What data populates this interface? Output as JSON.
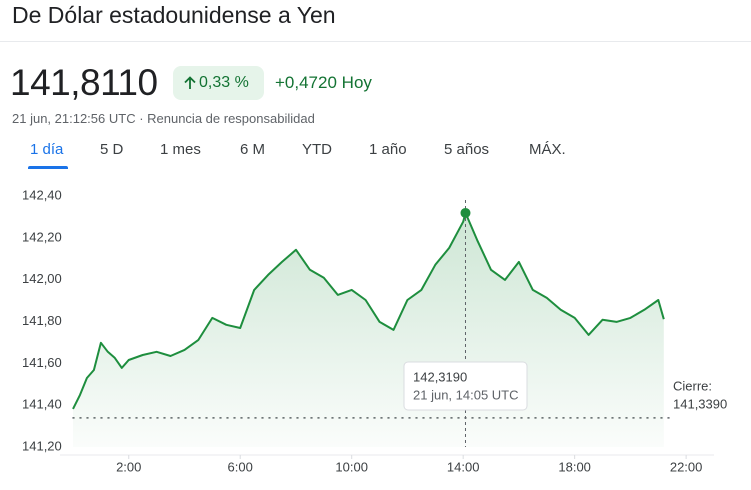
{
  "header": {
    "title": "De Dólar estadounidense a Yen",
    "price": "141,8110",
    "change_pct": "0,33 %",
    "change_abs": "+0,4720",
    "change_period": "Hoy",
    "meta": "21 jun, 21:12:56 UTC · Renuncia de responsabilidad"
  },
  "tabs": [
    "1 día",
    "5 D",
    "1 mes",
    "6 M",
    "YTD",
    "1 año",
    "5 años",
    "MÁX."
  ],
  "chart_data": {
    "type": "line",
    "color": "#1e8e3e",
    "x": [
      0,
      0.25,
      0.5,
      0.75,
      1,
      1.25,
      1.5,
      1.75,
      2,
      2.5,
      3,
      3.5,
      4,
      4.5,
      5,
      5.5,
      6,
      6.5,
      7,
      7.5,
      8,
      8.5,
      9,
      9.5,
      10,
      10.5,
      11,
      11.5,
      12,
      12.5,
      13,
      13.5,
      14,
      14.083,
      14.5,
      15,
      15.5,
      16,
      16.5,
      17,
      17.5,
      18,
      18.5,
      19,
      19.5,
      20,
      20.5,
      21,
      21.2
    ],
    "values": [
      141.382,
      141.449,
      141.53,
      141.568,
      141.698,
      141.655,
      141.626,
      141.578,
      141.616,
      141.64,
      141.655,
      141.635,
      141.664,
      141.712,
      141.817,
      141.784,
      141.769,
      141.951,
      142.023,
      142.085,
      142.143,
      142.047,
      142.009,
      141.927,
      141.951,
      141.903,
      141.798,
      141.76,
      141.903,
      141.951,
      142.071,
      142.152,
      142.277,
      142.319,
      142.19,
      142.047,
      141.999,
      142.085,
      141.951,
      141.913,
      141.856,
      141.817,
      141.736,
      141.808,
      141.798,
      141.817,
      141.856,
      141.903,
      141.811
    ],
    "xlim": [
      0,
      23
    ],
    "xticks": [
      {
        "value": 2,
        "label": "2:00"
      },
      {
        "value": 6,
        "label": "6:00"
      },
      {
        "value": 10,
        "label": "10:00"
      },
      {
        "value": 14,
        "label": "14:00"
      },
      {
        "value": 18,
        "label": "18:00"
      },
      {
        "value": 22,
        "label": "22:00"
      }
    ],
    "ylim": [
      141.2,
      142.4
    ],
    "yticks": [
      {
        "value": 141.2,
        "label": "141,20"
      },
      {
        "value": 141.4,
        "label": "141,40"
      },
      {
        "value": 141.6,
        "label": "141,60"
      },
      {
        "value": 141.8,
        "label": "141,80"
      },
      {
        "value": 142.0,
        "label": "142,00"
      },
      {
        "value": 142.2,
        "label": "142,20"
      },
      {
        "value": 142.4,
        "label": "142,40"
      }
    ],
    "grid": false,
    "previous_close": 141.339,
    "previous_close_title": "Cierre:",
    "previous_close_label": "141,3390",
    "tooltip": {
      "x": 14.083,
      "value": 142.319,
      "value_label": "142,3190",
      "time_label": "21 jun, 14:05 UTC"
    }
  }
}
